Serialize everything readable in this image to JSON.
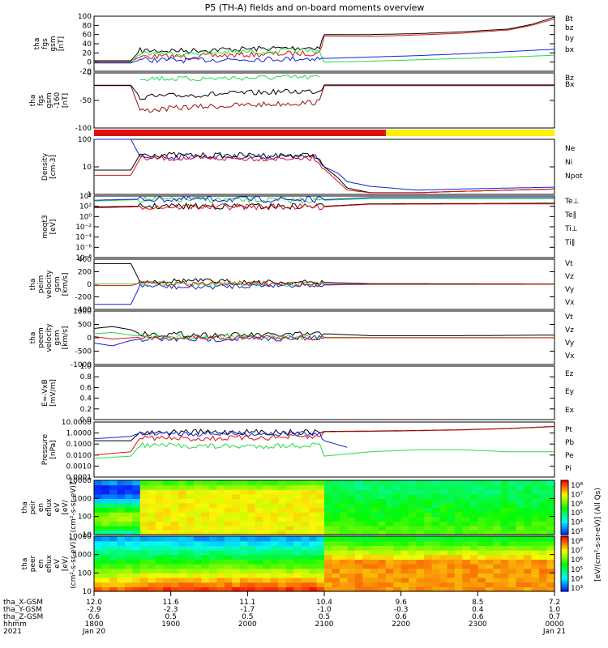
{
  "title": "P5 (TH-A) fields and on-board moments overview",
  "colors": {
    "black": "#000000",
    "red": "#dd1111",
    "green": "#22dd44",
    "blue": "#1122dd",
    "darkred": "#991111",
    "yellow": "#ffee00"
  },
  "chart_data": [
    {
      "type": "line",
      "ylabel": [
        "tha",
        "fgs",
        "gsm",
        "[nT]"
      ],
      "ylim": [
        -20,
        100
      ],
      "yticks": [
        "100",
        "80",
        "60",
        "40",
        "20",
        "0",
        "-20"
      ],
      "legend": [
        {
          "name": "Bt",
          "color": "black"
        },
        {
          "name": "bz",
          "color": "red"
        },
        {
          "name": "by",
          "color": "green"
        },
        {
          "name": "bx",
          "color": "blue"
        }
      ],
      "series": [
        {
          "name": "Bt",
          "color": "black",
          "x": [
            0,
            0.08,
            0.1,
            0.2,
            0.3,
            0.4,
            0.49,
            0.5,
            0.6,
            0.7,
            0.8,
            0.9,
            0.95,
            1.0
          ],
          "y": [
            3,
            3,
            25,
            25,
            28,
            30,
            32,
            60,
            60,
            62,
            66,
            72,
            82,
            98
          ]
        },
        {
          "name": "bz",
          "color": "red",
          "x": [
            0,
            0.08,
            0.1,
            0.2,
            0.3,
            0.4,
            0.49,
            0.5,
            0.6,
            0.7,
            0.8,
            0.9,
            0.95,
            1.0
          ],
          "y": [
            1,
            1,
            12,
            12,
            15,
            18,
            20,
            57,
            56,
            59,
            63,
            70,
            80,
            94
          ]
        },
        {
          "name": "by",
          "color": "green",
          "x": [
            0,
            0.08,
            0.1,
            0.2,
            0.3,
            0.4,
            0.49,
            0.5,
            0.6,
            0.7,
            0.8,
            0.9,
            1.0
          ],
          "y": [
            -1,
            -1,
            20,
            18,
            22,
            24,
            25,
            0,
            2,
            5,
            8,
            11,
            15
          ]
        },
        {
          "name": "bx",
          "color": "blue",
          "x": [
            0,
            0.08,
            0.1,
            0.2,
            0.3,
            0.4,
            0.49,
            0.5,
            0.6,
            0.7,
            0.8,
            0.9,
            1.0
          ],
          "y": [
            -2,
            -2,
            5,
            4,
            6,
            7,
            8,
            8,
            11,
            14,
            18,
            23,
            28
          ]
        }
      ]
    },
    {
      "type": "line",
      "ylabel": [
        "tha",
        "fgs",
        "gsm",
        "-160",
        "[nT]"
      ],
      "ylim": [
        -125,
        35
      ],
      "yticks": [
        "0",
        "-50",
        "-100"
      ],
      "legend": [
        {
          "name": "Bz",
          "color": "darkred"
        },
        {
          "name": "Bx",
          "color": "black"
        }
      ],
      "series": [
        {
          "name": "Bz",
          "color": "darkred",
          "x": [
            0,
            0.08,
            0.1,
            0.2,
            0.3,
            0.4,
            0.49,
            0.5,
            0.6,
            0.7,
            0.8,
            1.0
          ],
          "y": [
            -2,
            -2,
            -75,
            -65,
            -60,
            -55,
            -50,
            -2,
            -2,
            -2,
            -2,
            -2
          ]
        },
        {
          "name": "Bx",
          "color": "black",
          "x": [
            0,
            0.08,
            0.1,
            0.2,
            0.3,
            0.4,
            0.49,
            0.5,
            0.6,
            0.8,
            1.0
          ],
          "y": [
            -1,
            -1,
            -35,
            -30,
            -25,
            -20,
            -18,
            0,
            0,
            0,
            0
          ]
        },
        {
          "name": "green",
          "color": "green",
          "x": [
            0.1,
            0.2,
            0.3,
            0.4,
            0.49
          ],
          "y": [
            20,
            18,
            20,
            22,
            22
          ]
        }
      ]
    },
    {
      "type": "line",
      "ylabel": [
        "Density",
        "[cm-3]"
      ],
      "log": true,
      "ylim": [
        0.5,
        200
      ],
      "yticks": [
        "100",
        "10",
        "1"
      ],
      "legend": [
        {
          "name": "Ne",
          "color": "red"
        },
        {
          "name": "Ni",
          "color": "black"
        },
        {
          "name": "Npot",
          "color": "blue"
        }
      ],
      "series": [
        {
          "name": "Npot",
          "color": "blue",
          "x": [
            0,
            0.08,
            0.1,
            0.2,
            0.3,
            0.4,
            0.48,
            0.5,
            0.53,
            0.55,
            0.6,
            0.7,
            0.8,
            1.0
          ],
          "y": [
            200,
            200,
            30,
            30,
            30,
            30,
            30,
            10,
            5,
            2,
            1.2,
            0.8,
            0.9,
            1.1
          ]
        },
        {
          "name": "Ni",
          "color": "black",
          "x": [
            0,
            0.08,
            0.1,
            0.2,
            0.3,
            0.4,
            0.48,
            0.5,
            0.53,
            0.55,
            0.6,
            0.7,
            0.8,
            1.0
          ],
          "y": [
            7,
            7,
            40,
            35,
            35,
            35,
            35,
            10,
            3,
            1,
            0.6,
            0.6,
            0.7,
            0.9
          ]
        },
        {
          "name": "Ne",
          "color": "red",
          "x": [
            0,
            0.08,
            0.1,
            0.2,
            0.3,
            0.4,
            0.48,
            0.5,
            0.53,
            0.55,
            0.6,
            0.7,
            0.8,
            1.0
          ],
          "y": [
            4,
            4,
            25,
            25,
            25,
            25,
            25,
            8,
            2,
            0.8,
            0.6,
            0.6,
            0.7,
            0.9
          ]
        }
      ]
    },
    {
      "type": "line",
      "ylabel": [
        "moqt3",
        "[eV]"
      ],
      "log": true,
      "ylim": [
        1e-08,
        10000
      ],
      "yticks": [
        "10⁴",
        "10²",
        "10⁰",
        "10⁻²",
        "10⁻⁴",
        "10⁻⁶",
        "10⁻⁸"
      ],
      "legend": [
        {
          "name": "Te⊥",
          "color": "red"
        },
        {
          "name": "Te∥",
          "color": "black"
        },
        {
          "name": "Ti⊥",
          "color": "blue"
        },
        {
          "name": "Ti∥",
          "color": "green"
        }
      ],
      "series": [
        {
          "name": "Ti∥",
          "color": "green",
          "x": [
            0,
            0.1,
            0.5,
            0.6,
            1.0
          ],
          "y": [
            1000,
            2000,
            1500,
            3000,
            3000
          ]
        },
        {
          "name": "Ti⊥",
          "color": "blue",
          "x": [
            0,
            0.1,
            0.5,
            0.6,
            1.0
          ],
          "y": [
            1500,
            2500,
            2000,
            5000,
            5000
          ]
        },
        {
          "name": "Te∥",
          "color": "black",
          "x": [
            0,
            0.1,
            0.5,
            0.6,
            1.0
          ],
          "y": [
            80,
            100,
            100,
            300,
            400
          ]
        },
        {
          "name": "Te⊥",
          "color": "red",
          "x": [
            0,
            0.1,
            0.5,
            0.6,
            1.0
          ],
          "y": [
            50,
            80,
            80,
            250,
            300
          ]
        }
      ]
    },
    {
      "type": "line",
      "ylabel": [
        "tha",
        "peim",
        "velocity",
        "gsm",
        "[km/s]"
      ],
      "ylim": [
        -400,
        400
      ],
      "yticks": [
        "400",
        "200",
        "0",
        "-200",
        "-400"
      ],
      "legend": [
        {
          "name": "Vt",
          "color": "black"
        },
        {
          "name": "Vz",
          "color": "red"
        },
        {
          "name": "Vy",
          "color": "green"
        },
        {
          "name": "Vx",
          "color": "blue"
        }
      ],
      "series": [
        {
          "name": "Vt",
          "color": "black",
          "x": [
            0,
            0.08,
            0.1,
            0.2,
            0.3,
            0.4,
            0.5,
            0.6,
            1.0
          ],
          "y": [
            330,
            330,
            40,
            60,
            40,
            30,
            30,
            10,
            5
          ]
        },
        {
          "name": "Vx",
          "color": "blue",
          "x": [
            0,
            0.08,
            0.1,
            0.2,
            0.3,
            0.4,
            0.5,
            0.6,
            1.0
          ],
          "y": [
            -320,
            -320,
            -20,
            -50,
            -30,
            -10,
            -10,
            0,
            0
          ]
        },
        {
          "name": "Vy",
          "color": "green",
          "x": [
            0,
            0.08,
            0.1,
            0.2,
            0.3,
            0.4,
            0.5,
            0.6,
            1.0
          ],
          "y": [
            5,
            5,
            10,
            5,
            10,
            5,
            0,
            0,
            0
          ]
        },
        {
          "name": "Vz",
          "color": "red",
          "x": [
            0,
            0.08,
            0.1,
            0.2,
            0.3,
            0.4,
            0.5,
            0.6,
            1.0
          ],
          "y": [
            -20,
            -20,
            20,
            10,
            15,
            5,
            0,
            0,
            0
          ]
        }
      ]
    },
    {
      "type": "line",
      "ylabel": [
        "tha",
        "peem",
        "velocity",
        "gsm",
        "[km/s]"
      ],
      "ylim": [
        -1000,
        1000
      ],
      "yticks": [
        "1000",
        "500",
        "0",
        "-500",
        "-1000"
      ],
      "legend": [
        {
          "name": "Vt",
          "color": "black"
        },
        {
          "name": "Vz",
          "color": "red"
        },
        {
          "name": "Vy",
          "color": "green"
        },
        {
          "name": "Vx",
          "color": "blue"
        }
      ],
      "series": [
        {
          "name": "Vt",
          "color": "black",
          "x": [
            0,
            0.04,
            0.08,
            0.1,
            0.2,
            0.3,
            0.4,
            0.5,
            0.6,
            0.8,
            1.0
          ],
          "y": [
            350,
            420,
            300,
            150,
            120,
            100,
            100,
            150,
            80,
            80,
            100
          ]
        },
        {
          "name": "Vx",
          "color": "blue",
          "x": [
            0,
            0.04,
            0.08,
            0.1,
            0.2,
            0.3,
            0.4,
            0.5,
            0.6,
            1.0
          ],
          "y": [
            -200,
            -300,
            -100,
            -50,
            -60,
            -40,
            -30,
            0,
            0,
            0
          ]
        },
        {
          "name": "Vy",
          "color": "green",
          "x": [
            0,
            0.04,
            0.08,
            0.1,
            0.2,
            0.4,
            0.5,
            0.6,
            1.0
          ],
          "y": [
            150,
            200,
            100,
            50,
            40,
            30,
            20,
            10,
            10
          ]
        },
        {
          "name": "Vz",
          "color": "red",
          "x": [
            0,
            0.04,
            0.08,
            0.1,
            0.2,
            0.4,
            0.5,
            0.6,
            1.0
          ],
          "y": [
            50,
            -50,
            0,
            20,
            10,
            10,
            0,
            0,
            0
          ]
        }
      ]
    },
    {
      "type": "line",
      "ylabel": [
        "E=-VxB",
        "[mV/m]"
      ],
      "ylim": [
        0,
        1
      ],
      "yticks": [
        "1.0",
        "0.8",
        "0.6",
        "0.4",
        "0.2",
        "0.0"
      ],
      "legend": [
        {
          "name": "Ez",
          "color": "red"
        },
        {
          "name": "Ey",
          "color": "green"
        },
        {
          "name": "Ex",
          "color": "blue"
        }
      ],
      "series": []
    },
    {
      "type": "line",
      "ylabel": [
        "Pressure",
        "[nPa]"
      ],
      "log": true,
      "ylim": [
        0.0001,
        10
      ],
      "yticks": [
        "10.0000",
        "1.0000",
        "0.1000",
        "0.0100",
        "0.0010",
        "0.0001"
      ],
      "legend": [
        {
          "name": "Pt",
          "color": "black"
        },
        {
          "name": "Pb",
          "color": "red"
        },
        {
          "name": "Pe",
          "color": "green"
        },
        {
          "name": "Pi",
          "color": "blue"
        }
      ],
      "series": [
        {
          "name": "Pt",
          "color": "black",
          "x": [
            0,
            0.08,
            0.1,
            0.2,
            0.3,
            0.4,
            0.49,
            0.5,
            0.6,
            0.7,
            0.8,
            0.9,
            1.0
          ],
          "y": [
            0.2,
            0.2,
            1.2,
            1.2,
            1.2,
            1.2,
            1.2,
            1.4,
            1.5,
            1.7,
            2.0,
            2.6,
            4
          ]
        },
        {
          "name": "Pb",
          "color": "red",
          "x": [
            0,
            0.08,
            0.1,
            0.2,
            0.3,
            0.4,
            0.49,
            0.5,
            0.6,
            0.7,
            0.8,
            0.9,
            1.0
          ],
          "y": [
            0.01,
            0.02,
            0.4,
            0.3,
            0.35,
            0.4,
            0.45,
            1.3,
            1.4,
            1.6,
            1.9,
            2.5,
            3.8
          ]
        },
        {
          "name": "Pi",
          "color": "blue",
          "x": [
            0,
            0.08,
            0.1,
            0.2,
            0.3,
            0.4,
            0.49,
            0.5,
            0.55
          ],
          "y": [
            0.3,
            0.5,
            1.0,
            0.9,
            0.9,
            0.9,
            0.8,
            0.2,
            0.05
          ]
        },
        {
          "name": "Pe",
          "color": "green",
          "x": [
            0,
            0.08,
            0.1,
            0.2,
            0.3,
            0.4,
            0.49,
            0.5,
            0.6,
            0.7,
            0.8,
            0.9,
            1.0
          ],
          "y": [
            0.005,
            0.008,
            0.08,
            0.07,
            0.06,
            0.07,
            0.08,
            0.008,
            0.02,
            0.03,
            0.03,
            0.02,
            0.02
          ]
        }
      ]
    },
    {
      "type": "heatmap",
      "ylabel": [
        "tha",
        "peir",
        "en",
        "eflux",
        "eV",
        "[eV/",
        "(cm²-s-sr-eV)]"
      ],
      "ylim": [
        10,
        10000
      ],
      "yticks": [
        "10000",
        "1000",
        "100",
        "10"
      ]
    },
    {
      "type": "heatmap",
      "ylabel": [
        "tha",
        "peer",
        "en",
        "eflux",
        "eV",
        "[eV/",
        "(cm²-s-sr-eV)]"
      ],
      "ylim": [
        10,
        10000
      ],
      "yticks": [
        "10000",
        "1000",
        "100",
        "10"
      ]
    }
  ],
  "colorbar": {
    "label": "[eV/(cm²-s-sr-eV)] (All Qs)",
    "ticks": [
      "10⁸",
      "10⁷",
      "10⁶",
      "10⁵",
      "10⁴",
      "10³"
    ],
    "ticks2": [
      "10⁸",
      "10⁷",
      "10⁶",
      "10⁵",
      "10⁴",
      "10³"
    ]
  },
  "xaxis": {
    "rows": [
      "tha_X-GSM",
      "tha_Y-GSM",
      "tha_Z-GSM",
      "hhmm",
      "2021"
    ],
    "columns": [
      [
        "12.0",
        "-2.9",
        "0.6",
        "1800",
        "Jan 20"
      ],
      [
        "11.6",
        "-2.3",
        "0.5",
        "1900",
        ""
      ],
      [
        "11.1",
        "-1.7",
        "0.5",
        "2000",
        ""
      ],
      [
        "10.4",
        "-1.0",
        "0.5",
        "2100",
        ""
      ],
      [
        "9.6",
        "-0.3",
        "0.6",
        "2200",
        ""
      ],
      [
        "8.5",
        "0.4",
        "0.6",
        "2300",
        ""
      ],
      [
        "7.2",
        "1.0",
        "0.7",
        "0000",
        "Jan 21"
      ]
    ]
  }
}
